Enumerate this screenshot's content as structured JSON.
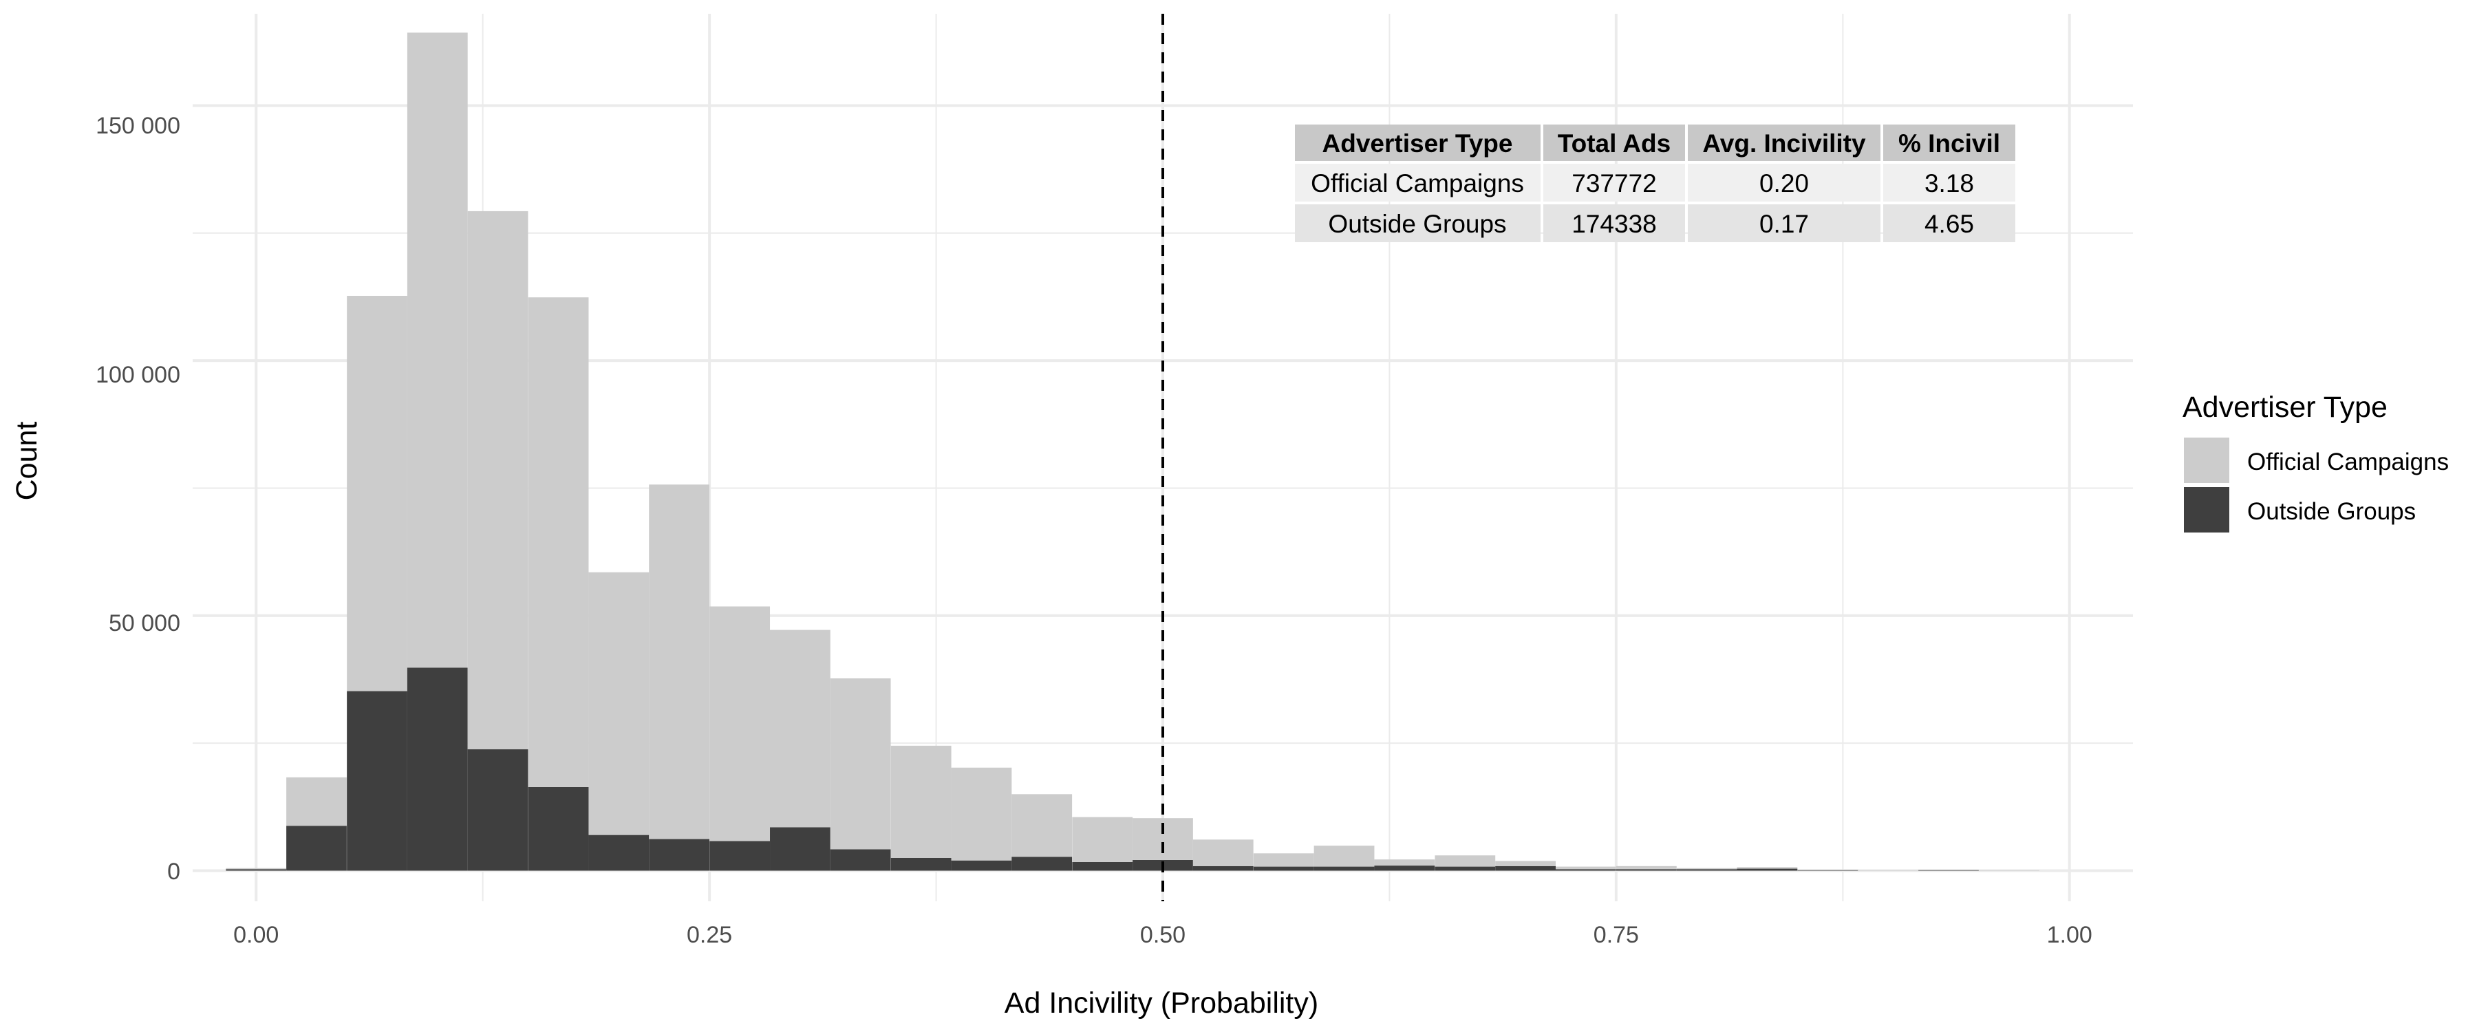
{
  "chart_data": {
    "type": "bar",
    "subtype": "stacked-histogram",
    "title": "",
    "xlabel": "Ad Incivility (Probability)",
    "ylabel": "Count",
    "xlim": [
      -0.035,
      1.035
    ],
    "ylim": [
      -6000,
      168000
    ],
    "x_ticks": [
      0,
      0.25,
      0.5,
      0.75,
      1
    ],
    "x_tick_labels": [
      "0.00",
      "0.25",
      "0.50",
      "0.75",
      "1.00"
    ],
    "y_ticks": [
      0,
      50000,
      100000,
      150000
    ],
    "y_tick_labels": [
      "0",
      "50 000",
      "100 000",
      "150 000"
    ],
    "grid": true,
    "bin_width": 0.0333,
    "bin_centers": [
      0,
      0.0333,
      0.0667,
      0.1,
      0.1333,
      0.1667,
      0.2,
      0.2333,
      0.2667,
      0.3,
      0.3333,
      0.3667,
      0.4,
      0.4333,
      0.4667,
      0.5,
      0.5333,
      0.5667,
      0.6,
      0.6333,
      0.6667,
      0.7,
      0.7333,
      0.7667,
      0.8,
      0.8333,
      0.8667,
      0.9,
      0.9333,
      0.9667
    ],
    "series": [
      {
        "name": "Official Campaigns",
        "color": "#cccccc",
        "values": [
          200,
          9500,
          77500,
          124500,
          105500,
          96000,
          51500,
          69500,
          46000,
          38700,
          33500,
          22000,
          18200,
          12300,
          8800,
          8200,
          5200,
          2600,
          4100,
          1200,
          2200,
          1000,
          500,
          600,
          200,
          300,
          100,
          100,
          100,
          100
        ]
      },
      {
        "name": "Outside Groups",
        "color": "#3f3f3f",
        "values": [
          300,
          8800,
          35200,
          39800,
          23800,
          16400,
          7000,
          6200,
          5800,
          8500,
          4200,
          2500,
          2000,
          2700,
          1700,
          2100,
          900,
          800,
          800,
          1000,
          800,
          900,
          300,
          300,
          300,
          400,
          100,
          0,
          100,
          0
        ]
      }
    ],
    "reference_line": {
      "x": 0.5,
      "style": "dashed",
      "color": "#000000"
    },
    "legend": {
      "title": "Advertiser Type",
      "position": "right",
      "items": [
        {
          "label": "Official Campaigns",
          "color": "#cccccc"
        },
        {
          "label": "Outside Groups",
          "color": "#3f3f3f"
        }
      ]
    },
    "summary_table": {
      "headers": [
        "Advertiser Type",
        "Total Ads",
        "Avg. Incivility",
        "% Incivil"
      ],
      "rows": [
        [
          "Official Campaigns",
          "737772",
          "0.20",
          "3.18"
        ],
        [
          "Outside Groups",
          "174338",
          "0.17",
          "4.65"
        ]
      ]
    }
  }
}
